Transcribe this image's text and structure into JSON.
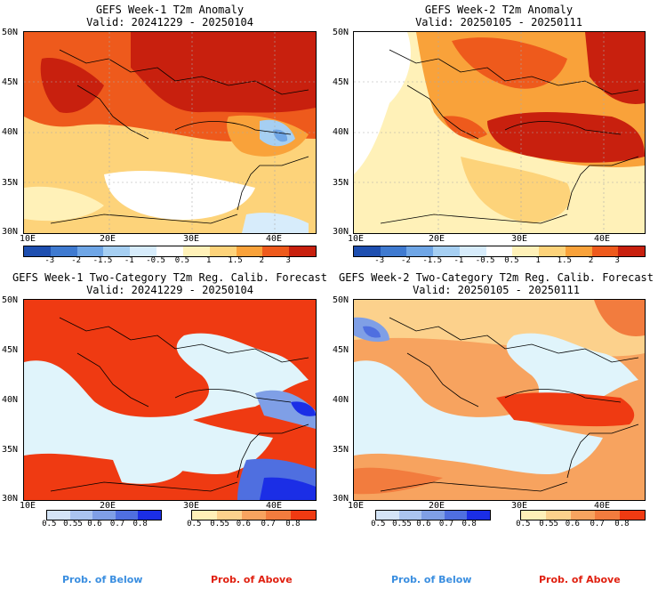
{
  "panels": [
    {
      "title": "GEFS Week-1 T2m Anomaly",
      "valid": "Valid: 20241229 - 20250104",
      "x_ticks": [
        "10E",
        "20E",
        "30E",
        "40E"
      ],
      "y_ticks": [
        "50N",
        "45N",
        "40N",
        "35N",
        "30N"
      ],
      "colorbar": {
        "labels": [
          "-3",
          "-2",
          "-1.5",
          "-1",
          "-0.5",
          "0.5",
          "1",
          "1.5",
          "2",
          "3"
        ],
        "colors": [
          "#1e4fb0",
          "#3f7ad0",
          "#6fa6e6",
          "#a6cff2",
          "#d7ecfb",
          "#ffffff",
          "#fff1b8",
          "#fdd37a",
          "#f9a23a",
          "#ee5a1c",
          "#c8200e"
        ]
      }
    },
    {
      "title": "GEFS Week-2 T2m Anomaly",
      "valid": "Valid: 20250105 - 20250111",
      "x_ticks": [
        "10E",
        "20E",
        "30E",
        "40E"
      ],
      "y_ticks": [
        "50N",
        "45N",
        "40N",
        "35N",
        "30N"
      ],
      "colorbar": {
        "labels": [
          "-3",
          "-2",
          "-1.5",
          "-1",
          "-0.5",
          "0.5",
          "1",
          "1.5",
          "2",
          "3"
        ],
        "colors": [
          "#1e4fb0",
          "#3f7ad0",
          "#6fa6e6",
          "#a6cff2",
          "#d7ecfb",
          "#ffffff",
          "#fff1b8",
          "#fdd37a",
          "#f9a23a",
          "#ee5a1c",
          "#c8200e"
        ]
      }
    },
    {
      "title": "GEFS Week-1 Two-Category T2m Reg. Calib. Forecast",
      "valid": "Valid: 20241229 - 20250104",
      "x_ticks": [
        "10E",
        "20E",
        "30E",
        "40E"
      ],
      "y_ticks": [
        "50N",
        "45N",
        "40N",
        "35N",
        "30N"
      ],
      "below_bar": {
        "labels": [
          "0.5",
          "0.55",
          "0.6",
          "0.7",
          "0.8"
        ],
        "colors": [
          "#d4e4f7",
          "#aac4ef",
          "#7f9fe6",
          "#4f6fe0",
          "#1b2ee6"
        ]
      },
      "above_bar": {
        "labels": [
          "0.5",
          "0.55",
          "0.6",
          "0.7",
          "0.8"
        ],
        "colors": [
          "#fff0b8",
          "#fcd18c",
          "#f7a35f",
          "#f27c3e",
          "#ef3a12"
        ]
      }
    },
    {
      "title": "GEFS Week-2 Two-Category T2m Reg. Calib. Forecast",
      "valid": "Valid: 20250105 - 20250111",
      "x_ticks": [
        "10E",
        "20E",
        "30E",
        "40E"
      ],
      "y_ticks": [
        "50N",
        "45N",
        "40N",
        "35N",
        "30N"
      ],
      "below_bar": {
        "labels": [
          "0.5",
          "0.55",
          "0.6",
          "0.7",
          "0.8"
        ],
        "colors": [
          "#d4e4f7",
          "#aac4ef",
          "#7f9fe6",
          "#4f6fe0",
          "#1b2ee6"
        ]
      },
      "above_bar": {
        "labels": [
          "0.5",
          "0.55",
          "0.6",
          "0.7",
          "0.8"
        ],
        "colors": [
          "#fff0b8",
          "#fcd18c",
          "#f7a35f",
          "#f27c3e",
          "#ef3a12"
        ]
      }
    }
  ],
  "legend": {
    "below_label": "Prob. of Below",
    "above_label": "Prob. of Above",
    "below_color": "#3a8ee0",
    "above_color": "#e02010"
  },
  "colors": {
    "sea_light_blue": "#e0f4fb",
    "anom_dark_red": "#b8160c"
  }
}
